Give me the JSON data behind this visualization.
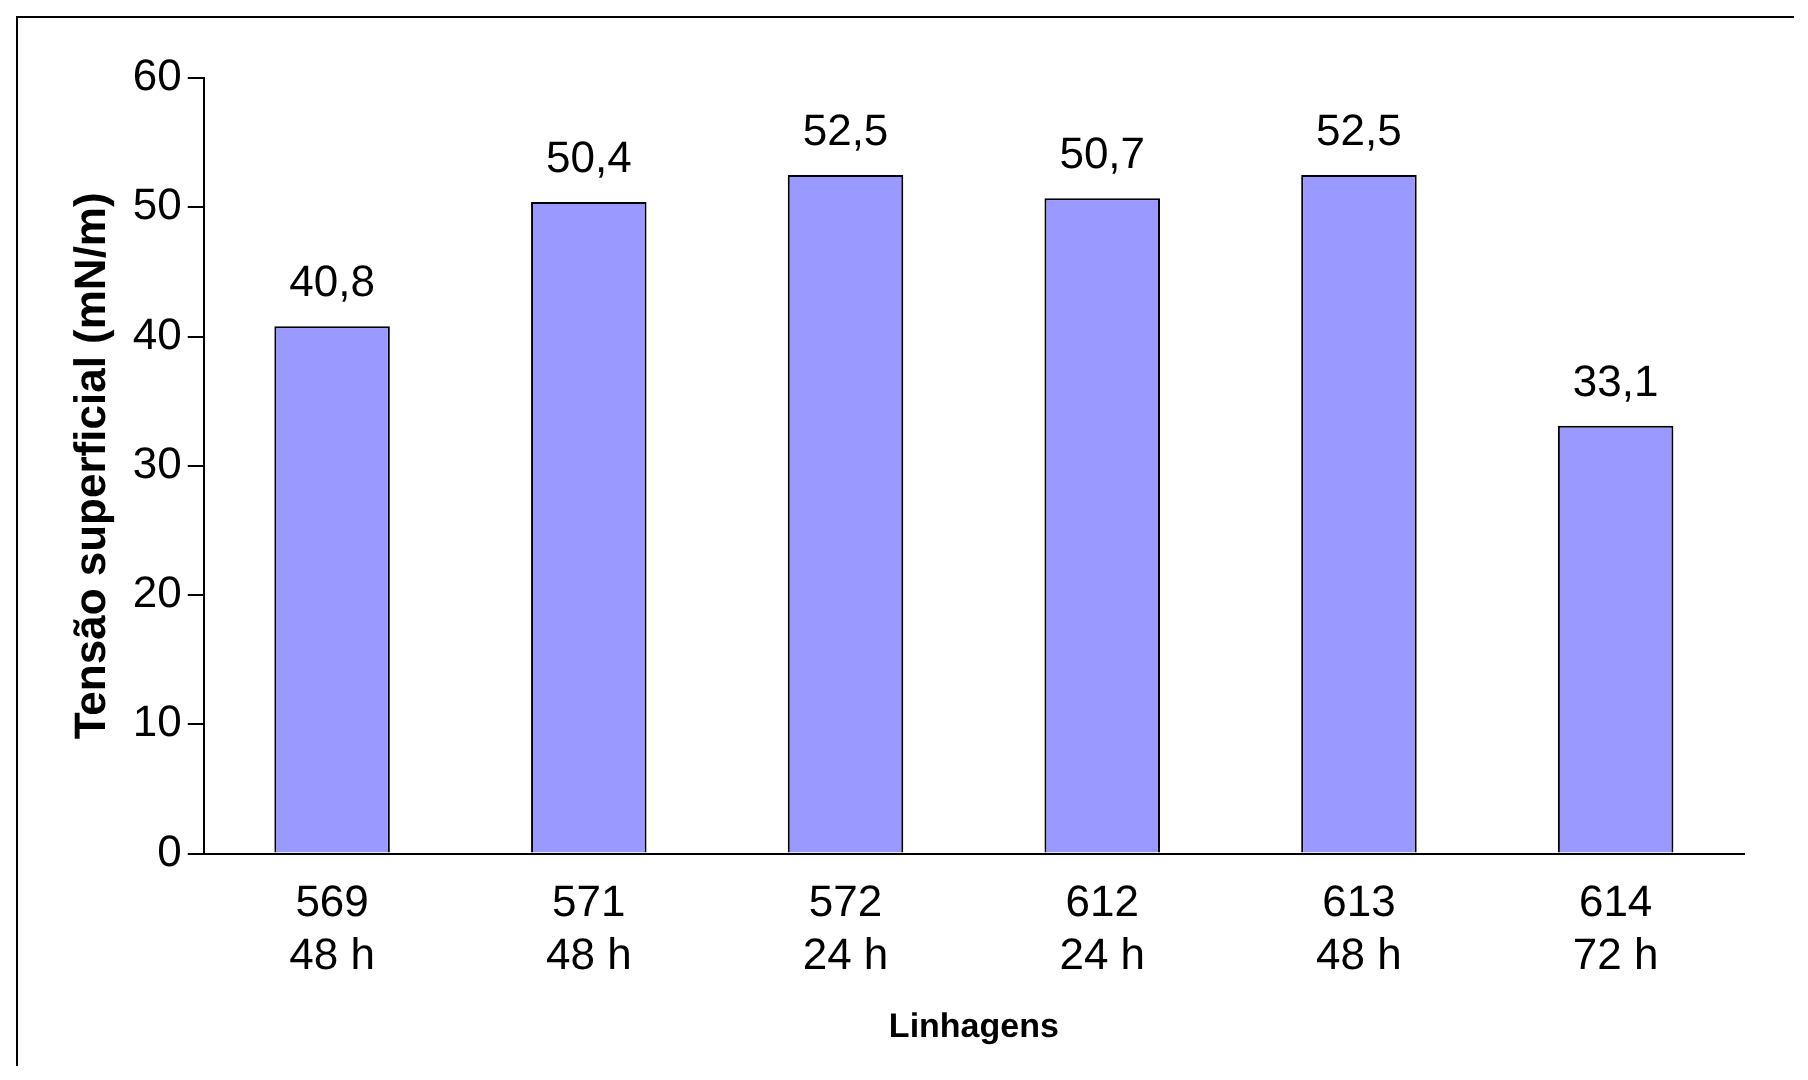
{
  "chart_data": {
    "type": "bar",
    "xlabel": "Linhagens",
    "ylabel": "Tensão superficial (mN/m)",
    "categories": [
      "569\n48 h",
      "571\n48 h",
      "572\n24 h",
      "612\n24 h",
      "613\n48 h",
      "614\n72 h"
    ],
    "values": [
      40.8,
      50.4,
      52.5,
      50.7,
      52.5,
      33.1
    ],
    "value_labels": [
      "40,8",
      "50,4",
      "52,5",
      "50,7",
      "52,5",
      "33,1"
    ],
    "color": "#9999ff",
    "ylim": [
      0,
      60
    ],
    "yticks": [
      0,
      10,
      20,
      30,
      40,
      50,
      60
    ],
    "grid": false,
    "legend": false
  }
}
